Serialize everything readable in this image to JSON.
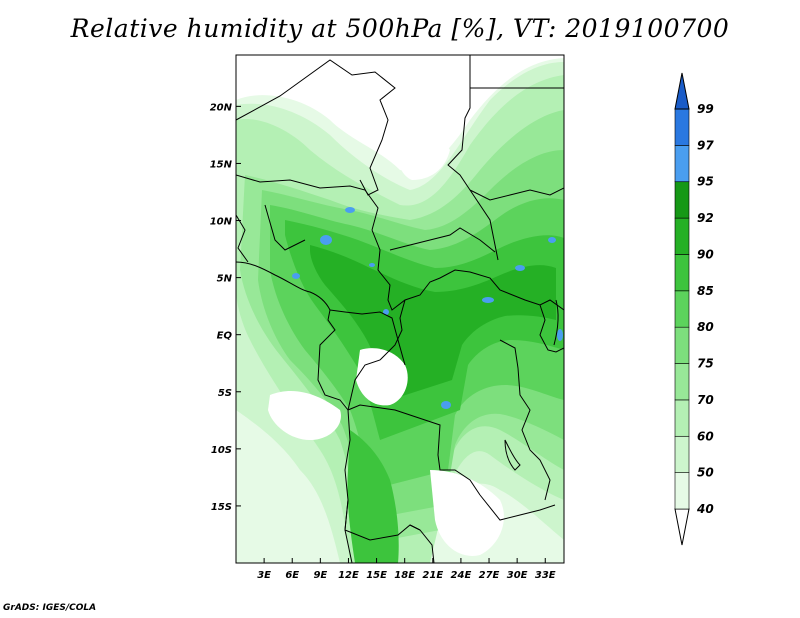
{
  "title": "Relative humidity at 500hPa [%], VT: 2019100700",
  "footer": "GrADS: IGES/COLA",
  "axes": {
    "lon_min": 0,
    "lon_max": 35,
    "lat_min": -20,
    "lat_max": 24.5,
    "lat_ticks": [
      {
        "value": 20,
        "label": "20N"
      },
      {
        "value": 15,
        "label": "15N"
      },
      {
        "value": 10,
        "label": "10N"
      },
      {
        "value": 5,
        "label": "5N"
      },
      {
        "value": 0,
        "label": "EQ"
      },
      {
        "value": -5,
        "label": "5S"
      },
      {
        "value": -10,
        "label": "10S"
      },
      {
        "value": -15,
        "label": "15S"
      }
    ],
    "lon_ticks": [
      {
        "value": 3,
        "label": "3E"
      },
      {
        "value": 6,
        "label": "6E"
      },
      {
        "value": 9,
        "label": "9E"
      },
      {
        "value": 12,
        "label": "12E"
      },
      {
        "value": 15,
        "label": "15E"
      },
      {
        "value": 18,
        "label": "18E"
      },
      {
        "value": 21,
        "label": "21E"
      },
      {
        "value": 24,
        "label": "24E"
      },
      {
        "value": 27,
        "label": "27E"
      },
      {
        "value": 30,
        "label": "30E"
      },
      {
        "value": 33,
        "label": "33E"
      }
    ]
  },
  "colorbar": {
    "levels": [
      "40",
      "50",
      "60",
      "70",
      "75",
      "80",
      "85",
      "90",
      "92",
      "95",
      "97",
      "99"
    ],
    "colors": [
      "#ffffff",
      "#e6fae6",
      "#cdf5cd",
      "#b4f0b4",
      "#98e898",
      "#7ddf7d",
      "#5cd35c",
      "#3dc43d",
      "#25b025",
      "#169816",
      "#4a9ef0",
      "#2a78e0",
      "#1a5cc8"
    ]
  },
  "palette": {
    "g1": "#e6fae6",
    "g2": "#cdf5cd",
    "g3": "#b4f0b4",
    "g4": "#98e898",
    "g5": "#7ddf7d",
    "g6": "#5cd35c",
    "g7": "#3dc43d",
    "g8": "#25b025",
    "blue": "#4a9ef0"
  }
}
